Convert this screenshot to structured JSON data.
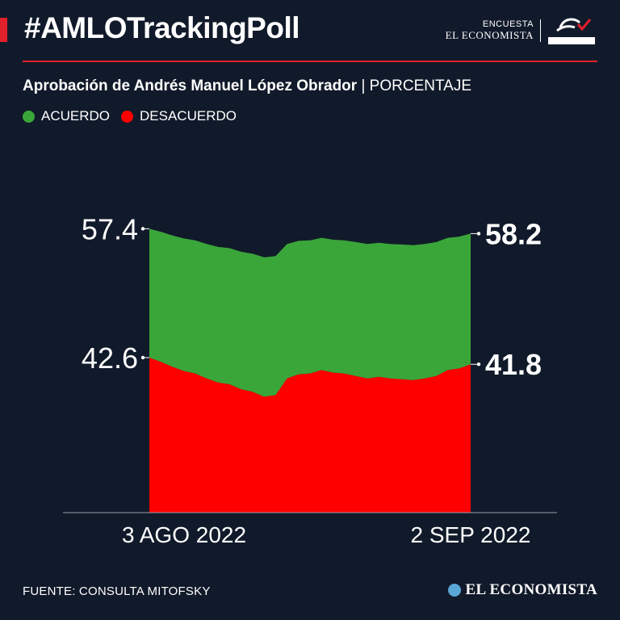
{
  "header": {
    "hashtag": "#AMLOTrackingPoll",
    "brand_small": "ENCUESTA",
    "brand_name": "EL ECONOMISTA",
    "partner_logo": "CONSULTA MITOFSKY"
  },
  "subtitle": {
    "main": "Aprobación de Andrés Manuel López Obrador",
    "unit": "PORCENTAJE"
  },
  "legend": [
    {
      "label": "ACUERDO",
      "color": "#3aa63a"
    },
    {
      "label": "DESACUERDO",
      "color": "#ff0000"
    }
  ],
  "chart_data": {
    "type": "area",
    "x_labels": [
      "3 AGO 2022",
      "2 SEP 2022"
    ],
    "series": [
      {
        "name": "ACUERDO",
        "color": "#3aa63a",
        "values": [
          57.4,
          57.9,
          58.5,
          59.0,
          59.3,
          59.9,
          60.4,
          60.6,
          61.2,
          61.5,
          62.1,
          61.9,
          59.9,
          59.4,
          59.3,
          58.9,
          59.2,
          59.3,
          59.6,
          59.9,
          59.7,
          59.9,
          60.0,
          60.1,
          59.9,
          59.6,
          58.9,
          58.7,
          58.2
        ],
        "start_label": "57.4",
        "end_label": "58.2"
      },
      {
        "name": "DESACUERDO",
        "color": "#ff0000",
        "values": [
          42.6,
          42.1,
          41.5,
          41.0,
          40.7,
          40.1,
          39.6,
          39.4,
          38.8,
          38.5,
          37.9,
          38.1,
          40.1,
          40.6,
          40.7,
          41.1,
          40.8,
          40.7,
          40.4,
          40.1,
          40.3,
          40.1,
          40.0,
          39.9,
          40.1,
          40.4,
          41.1,
          41.3,
          41.8
        ],
        "start_label": "42.6",
        "end_label": "41.8"
      }
    ],
    "ylim": [
      0,
      100
    ]
  },
  "footer": {
    "source": "FUENTE: CONSULTA MITOFSKY",
    "brand": "EL ECONOMISTA"
  }
}
